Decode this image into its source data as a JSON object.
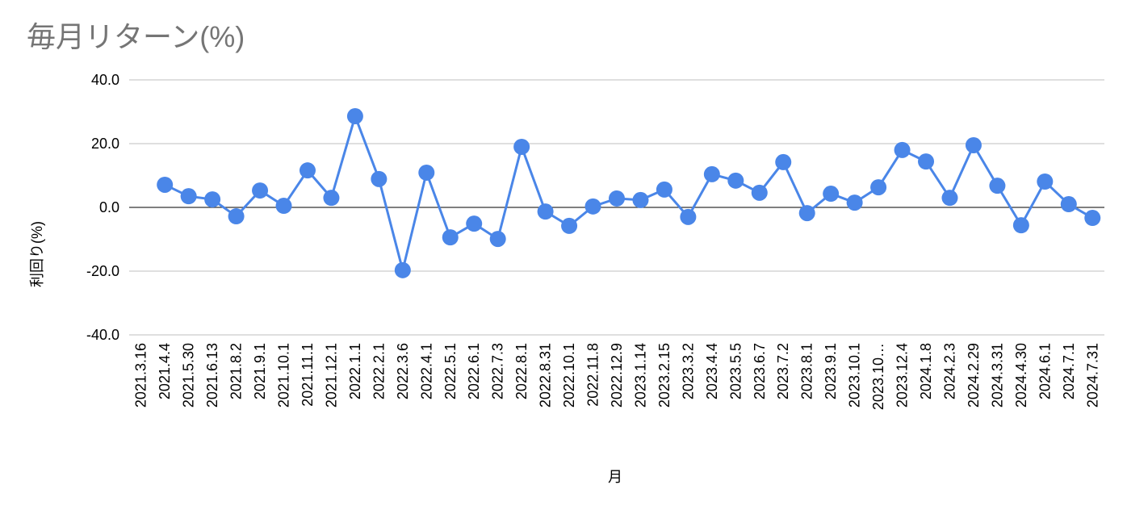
{
  "chart_data": {
    "type": "line",
    "title": "毎月リターン(%)",
    "xlabel": "月",
    "ylabel": "利回り(%)",
    "categories": [
      "2021.3.16",
      "2021.4.4",
      "2021.5.30",
      "2021.6.13",
      "2021.8.2",
      "2021.9.1",
      "2021.10.1",
      "2021.11.1",
      "2021.12.1",
      "2022.1.1",
      "2022.2.1",
      "2022.3.6",
      "2022.4.1",
      "2022.5.1",
      "2022.6.1",
      "2022.7.3",
      "2022.8.1",
      "2022.8.31",
      "2022.10.1",
      "2022.11.8",
      "2022.12.9",
      "2023.1.14",
      "2023.2.15",
      "2023.3.2",
      "2023.4.4",
      "2023.5.5",
      "2023.6.7",
      "2023.7.2",
      "2023.8.1",
      "2023.9.1",
      "2023.10.1",
      "2023.10…",
      "2023.12.4",
      "2024.1.8",
      "2024.2.3",
      "2024.2.29",
      "2024.3.31",
      "2024.4.30",
      "2024.6.1",
      "2024.7.1",
      "2024.7.31"
    ],
    "series": [
      {
        "name": "利回り(%)",
        "color": "#4a86e8",
        "values": [
          null,
          7.1,
          3.5,
          2.5,
          -2.8,
          5.3,
          0.5,
          11.6,
          3.0,
          28.6,
          8.9,
          -19.7,
          10.9,
          -9.4,
          -5.1,
          -9.9,
          19.0,
          -1.3,
          -5.8,
          0.3,
          2.8,
          2.3,
          5.6,
          -3.0,
          10.4,
          8.4,
          4.6,
          14.2,
          -1.8,
          4.3,
          1.5,
          6.3,
          18.0,
          14.4,
          3.0,
          19.5,
          6.8,
          -5.6,
          8.1,
          1.0,
          -3.3
        ]
      }
    ],
    "ylim": [
      -40,
      40
    ],
    "yticks": [
      {
        "value": -40,
        "label": "-40.0"
      },
      {
        "value": -20,
        "label": "-20.0"
      },
      {
        "value": 0,
        "label": "0.0"
      },
      {
        "value": 20,
        "label": "20.0"
      },
      {
        "value": 40,
        "label": "40.0"
      }
    ],
    "grid": true
  }
}
